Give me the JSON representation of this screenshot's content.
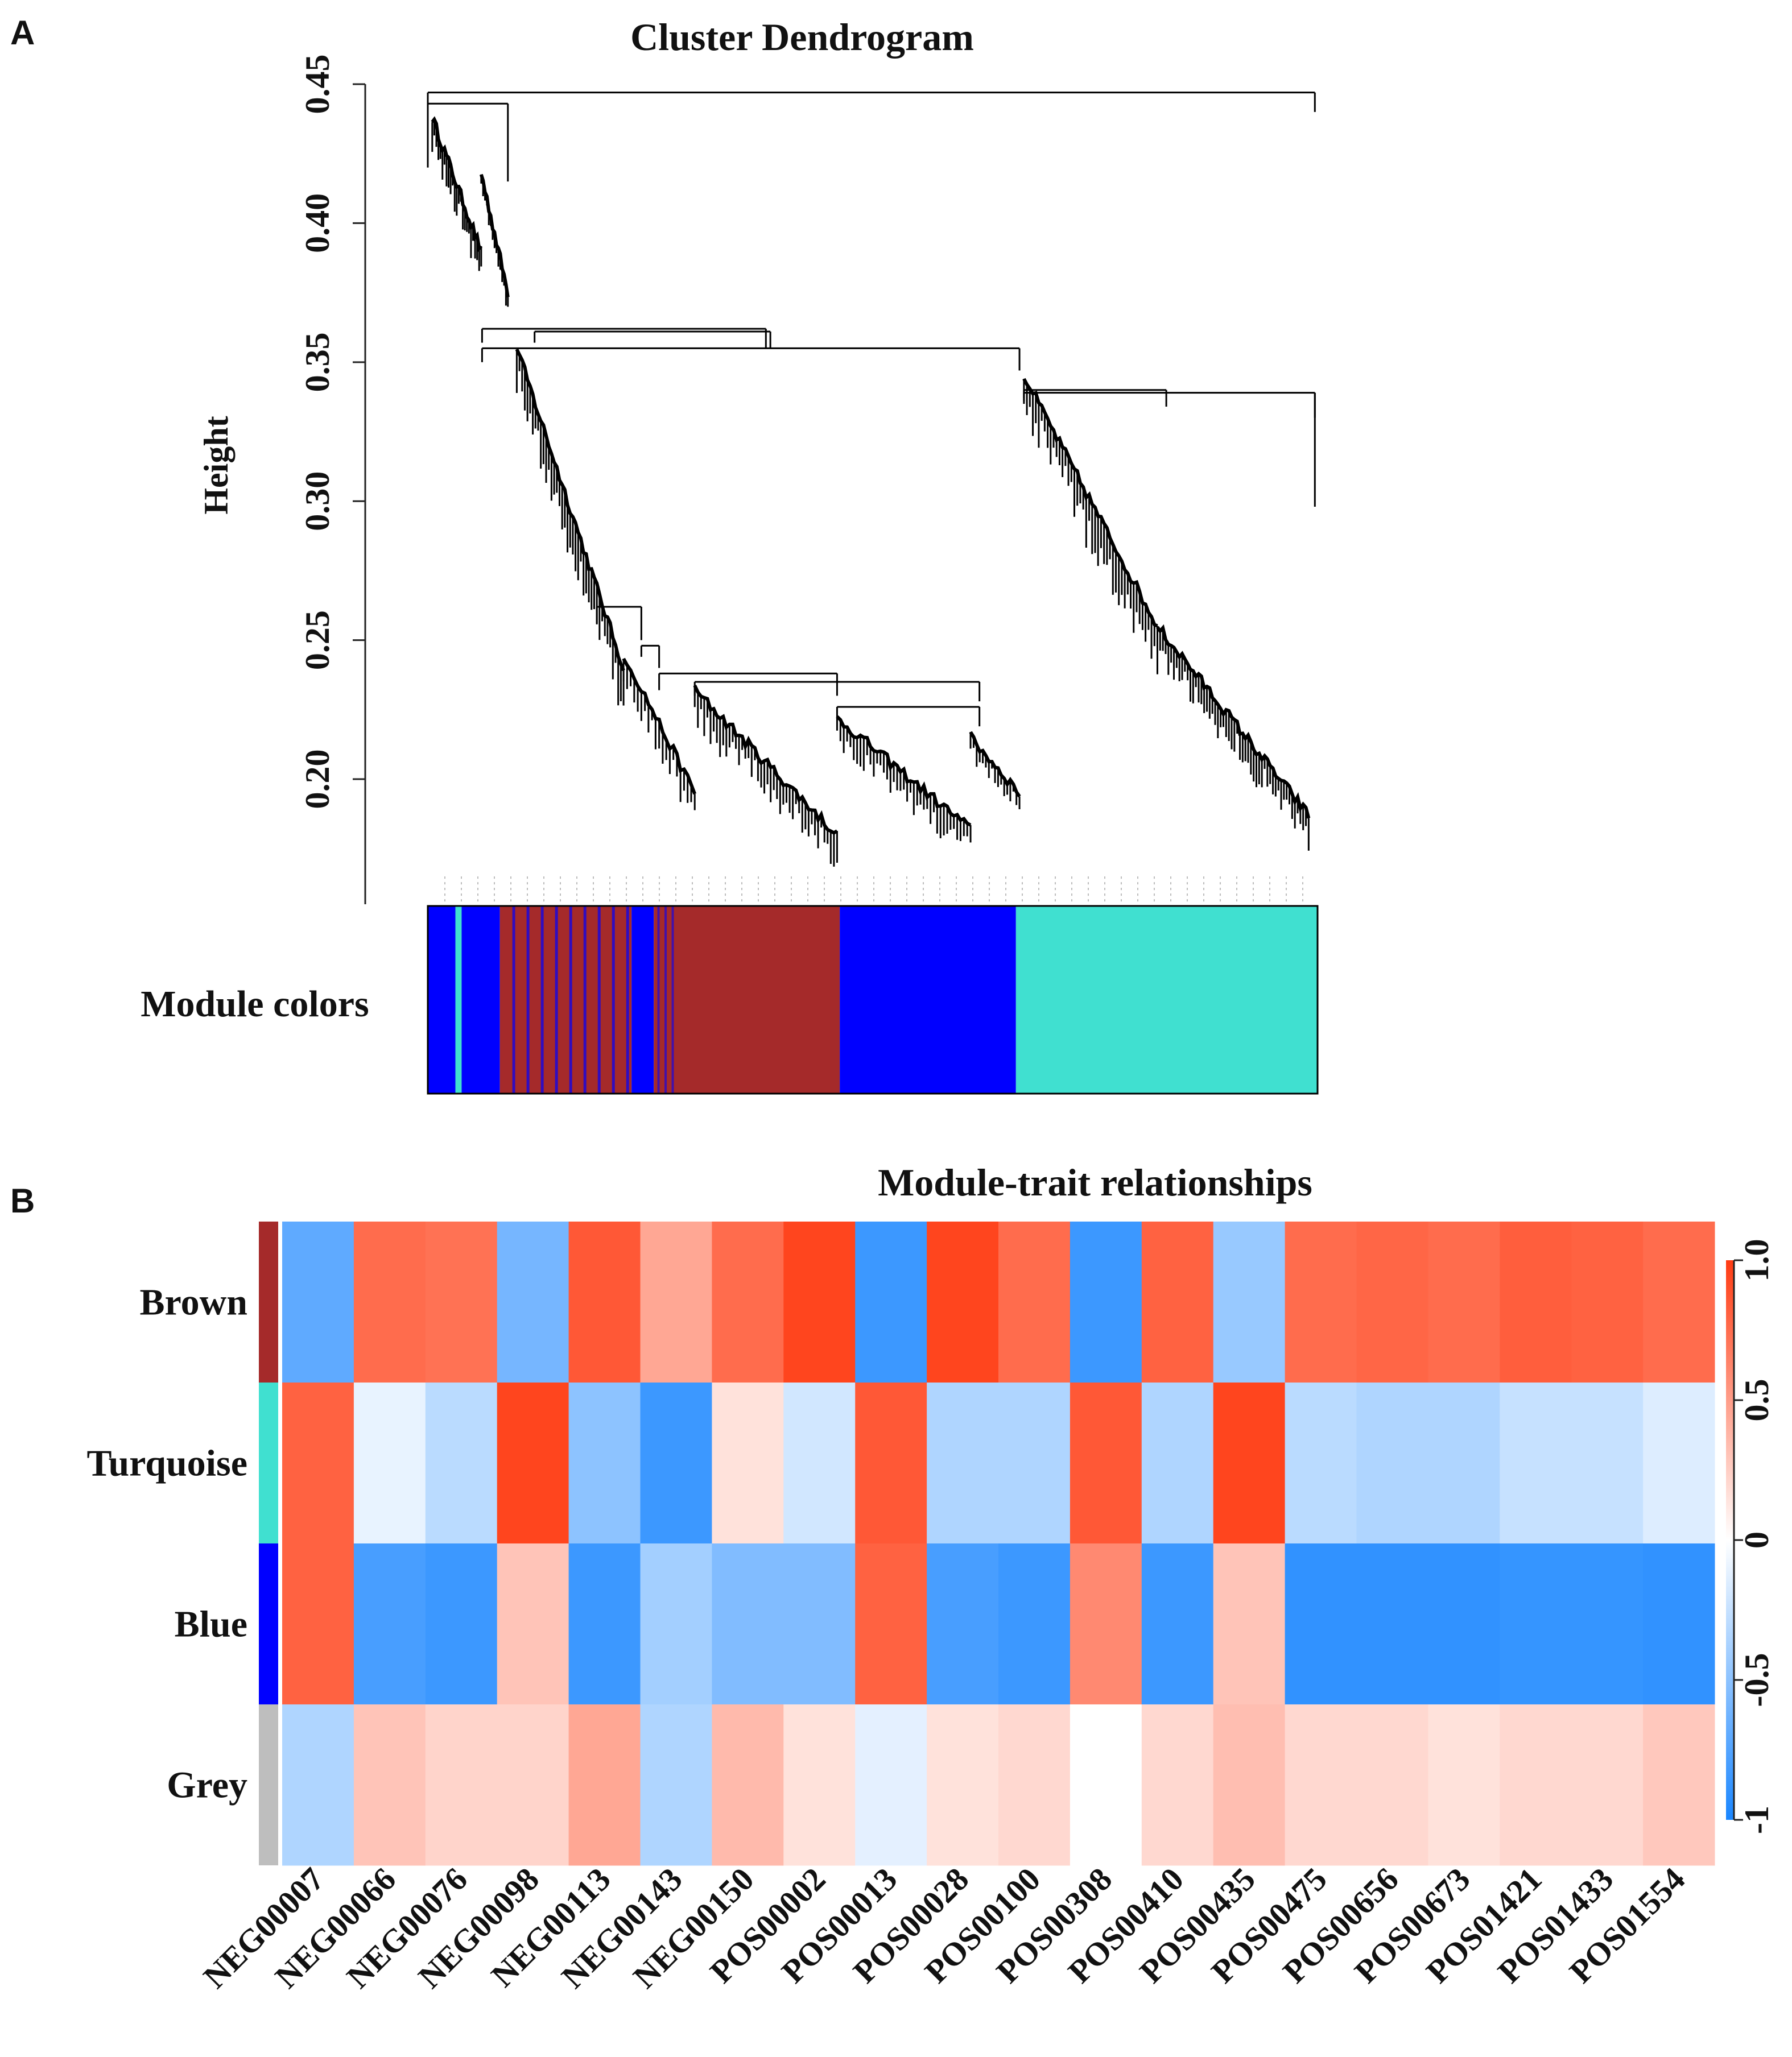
{
  "panels": {
    "a_letter": "A",
    "b_letter": "B"
  },
  "colors": {
    "brown": "#a52a2a",
    "blue": "#0000ff",
    "turquoise": "#40e0d0",
    "grey": "#bebebe",
    "scale_neg": "#1a86ff",
    "scale_mid": "#ffffff",
    "scale_pos": "#ff3b12"
  },
  "chart_data": [
    {
      "type": "dendrogram",
      "title": "Cluster Dendrogram",
      "ylabel": "Height",
      "ylim": [
        0.155,
        0.45
      ],
      "yticks": [
        0.2,
        0.25,
        0.3,
        0.35,
        0.4,
        0.45
      ],
      "merges": [
        {
          "left": "brown/blue branch",
          "right": "turquoise branch",
          "height": 0.355
        },
        {
          "left": "root left",
          "right": "isolated gene",
          "height": 0.447
        },
        {
          "left": "turquoise main",
          "right": "turquoise small cluster",
          "height": 0.339
        },
        {
          "left": "brown main",
          "right": "blue main",
          "height": 0.238
        }
      ],
      "color_bar": {
        "label": "Module colors",
        "segments": [
          {
            "module": "blue",
            "from": 0.0,
            "to": 0.031
          },
          {
            "module": "turquoise",
            "from": 0.031,
            "to": 0.038
          },
          {
            "module": "blue",
            "from": 0.038,
            "to": 0.081
          },
          {
            "module": "brown",
            "from": 0.081,
            "to": 0.229
          },
          {
            "module": "blue",
            "from": 0.229,
            "to": 0.254
          },
          {
            "module": "brown",
            "from": 0.254,
            "to": 0.463
          },
          {
            "module": "blue",
            "from": 0.463,
            "to": 0.661
          },
          {
            "module": "turquoise",
            "from": 0.661,
            "to": 1.0
          }
        ]
      }
    },
    {
      "type": "heatmap",
      "title": "Module-trait relationships",
      "rows": [
        "Brown",
        "Turquoise",
        "Blue",
        "Grey"
      ],
      "row_colors": [
        "brown",
        "turquoise",
        "blue",
        "grey"
      ],
      "columns": [
        "NEG00007",
        "NEG00066",
        "NEG00076",
        "NEG00098",
        "NEG00113",
        "NEG00143",
        "NEG00150",
        "POS00002",
        "POS00013",
        "POS00028",
        "POS00100",
        "POS00308",
        "POS00410",
        "POS00435",
        "POS00475",
        "POS00656",
        "POS00673",
        "POS01421",
        "POS01433",
        "POS01554"
      ],
      "values": [
        [
          -0.7,
          0.75,
          0.72,
          -0.6,
          0.85,
          0.45,
          0.75,
          0.95,
          -0.85,
          0.95,
          0.75,
          -0.85,
          0.8,
          -0.45,
          0.75,
          0.78,
          0.75,
          0.82,
          0.8,
          0.75
        ],
        [
          0.8,
          -0.1,
          -0.3,
          0.95,
          -0.5,
          -0.85,
          0.15,
          -0.2,
          0.85,
          -0.35,
          -0.35,
          0.85,
          -0.35,
          0.95,
          -0.3,
          -0.35,
          -0.35,
          -0.25,
          -0.25,
          -0.15
        ],
        [
          0.8,
          -0.8,
          -0.85,
          0.3,
          -0.85,
          -0.4,
          -0.55,
          -0.55,
          0.8,
          -0.8,
          -0.85,
          0.6,
          -0.85,
          0.3,
          -0.9,
          -0.9,
          -0.9,
          -0.88,
          -0.88,
          -0.9
        ],
        [
          -0.35,
          0.3,
          0.22,
          0.22,
          0.45,
          -0.35,
          0.35,
          0.15,
          -0.12,
          0.15,
          0.2,
          0.0,
          0.2,
          0.33,
          0.2,
          0.2,
          0.15,
          0.2,
          0.2,
          0.28
        ]
      ],
      "colorbar": {
        "range": [
          -1,
          1
        ],
        "ticks": [
          -1,
          -0.5,
          0,
          0.5,
          1.0
        ],
        "tick_labels": [
          "-1",
          "-0.5",
          "0",
          "0.5",
          "1.0"
        ]
      }
    }
  ]
}
